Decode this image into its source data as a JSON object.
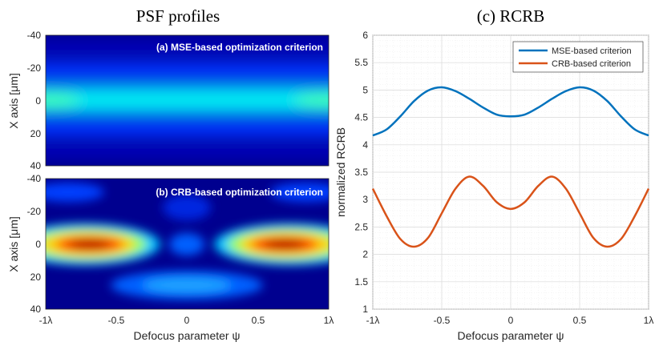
{
  "left_title": "PSF profiles",
  "right_title": "(c) RCRB",
  "panel_a": {
    "label": "(a) MSE-based optimization criterion",
    "ylabel": "X axis [μm]",
    "y_ticks": [
      "-40",
      "-20",
      "0",
      "20",
      "40"
    ]
  },
  "panel_b": {
    "label": "(b) CRB-based optimization criterion",
    "ylabel": "X axis [μm]",
    "y_ticks": [
      "-40",
      "-20",
      "0",
      "20",
      "40"
    ],
    "x_ticks": [
      "-1λ",
      "-0.5",
      "0",
      "0.5",
      "1λ"
    ],
    "xlabel": "Defocus parameter ψ"
  },
  "chart_data": [
    {
      "type": "heatmap",
      "title": "(a) MSE-based optimization criterion",
      "xlabel": "",
      "ylabel": "X axis [μm]",
      "xlim": [
        -1,
        1
      ],
      "ylim": [
        -40,
        40
      ],
      "colormap": "jet",
      "description_values": {
        "central_band_x_um": 0,
        "central_band_intensity": 0.5,
        "side_band_x_um": [
          -20,
          20
        ],
        "side_band_intensity": 0.12
      }
    },
    {
      "type": "heatmap",
      "title": "(b) CRB-based optimization criterion",
      "xlabel": "Defocus parameter ψ",
      "ylabel": "X axis [μm]",
      "xlim": [
        -1,
        1
      ],
      "ylim": [
        -40,
        40
      ],
      "colormap": "jet",
      "description_values": {
        "peak_psi": [
          -0.7,
          0.7
        ],
        "peak_x_um": 0,
        "peak_intensity": 1.0,
        "lower_lobe_x_um": 22,
        "lower_lobe_intensity": 0.3
      }
    },
    {
      "type": "line",
      "title": "(c) RCRB",
      "xlabel": "Defocus parameter ψ",
      "ylabel": "normalized RCRB",
      "xlim": [
        -1,
        1
      ],
      "ylim": [
        1,
        6
      ],
      "x_ticks": [
        "-1λ",
        "-0.5",
        "0",
        "0.5",
        "1λ"
      ],
      "y_ticks": [
        "1",
        "1.5",
        "2",
        "2.5",
        "3",
        "3.5",
        "4",
        "4.5",
        "5",
        "5.5",
        "6"
      ],
      "grid": true,
      "legend_position": "top-right",
      "x": [
        -1,
        -0.9,
        -0.8,
        -0.7,
        -0.6,
        -0.5,
        -0.4,
        -0.3,
        -0.2,
        -0.1,
        0,
        0.1,
        0.2,
        0.3,
        0.4,
        0.5,
        0.6,
        0.7,
        0.8,
        0.9,
        1
      ],
      "series": [
        {
          "name": "MSE-based criterion",
          "color": "#0072BD",
          "values": [
            4.17,
            4.28,
            4.52,
            4.8,
            4.99,
            5.05,
            4.98,
            4.84,
            4.68,
            4.55,
            4.52,
            4.55,
            4.68,
            4.84,
            4.98,
            5.05,
            4.99,
            4.8,
            4.52,
            4.28,
            4.17
          ]
        },
        {
          "name": "CRB-based criterion",
          "color": "#D95319",
          "values": [
            3.2,
            2.7,
            2.28,
            2.14,
            2.3,
            2.75,
            3.2,
            3.42,
            3.25,
            2.95,
            2.83,
            2.95,
            3.25,
            3.42,
            3.2,
            2.75,
            2.3,
            2.14,
            2.28,
            2.7,
            3.2
          ]
        }
      ]
    }
  ]
}
